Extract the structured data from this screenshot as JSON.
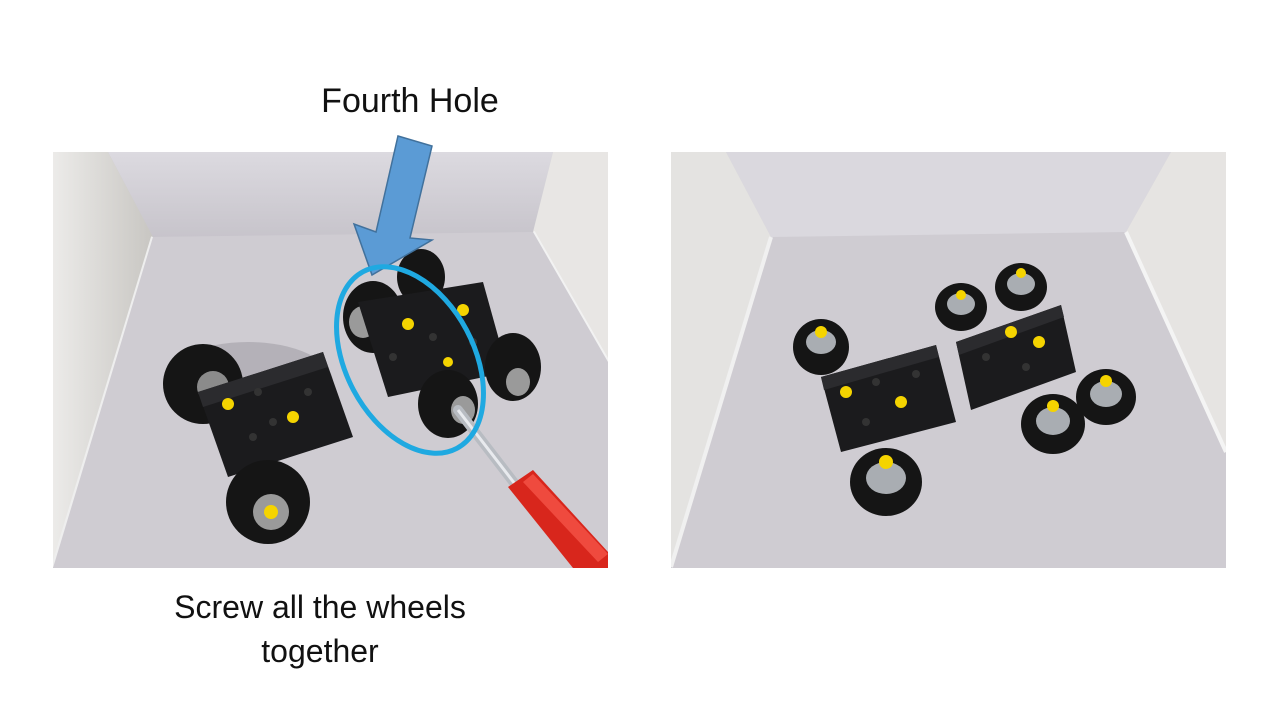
{
  "slide": {
    "top_label": "Fourth Hole",
    "bottom_caption_line1": "Screw all the wheels",
    "bottom_caption_line2": "together"
  },
  "colors": {
    "arrow_fill": "#5b9bd5",
    "arrow_stroke": "#41719c",
    "ellipse_stroke": "#1fa9e1",
    "brick": "#1b1b1d",
    "hub_yellow": "#f5d400",
    "screwdriver_handle": "#d8261c"
  },
  "icons": {
    "arrow": "down-arrow-icon",
    "highlight": "ellipse-highlight"
  }
}
